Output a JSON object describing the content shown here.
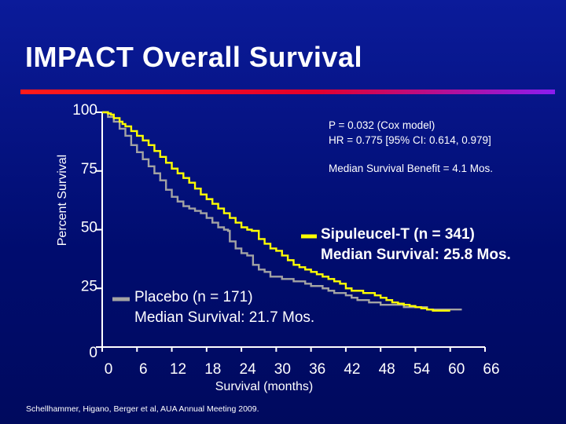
{
  "header": {
    "title": "IMPACT Overall Survival"
  },
  "annotations": {
    "p_value": "P = 0.032 (Cox model)",
    "hazard_ratio": "HR = 0.775 [95% CI: 0.614, 0.979]",
    "benefit": "Median Survival Benefit = 4.1 Mos.",
    "sipuleucel_label": "Sipuleucel-T (n = 341)",
    "sipuleucel_median": "Median Survival: 25.8 Mos.",
    "placebo_label": "Placebo (n = 171)",
    "placebo_median": "Median Survival: 21.7 Mos."
  },
  "footer": {
    "source": "Schellhammer, Higano, Berger et al, AUA Annual Meeting  2009."
  },
  "chart_data": {
    "type": "line",
    "title": "IMPACT Overall Survival",
    "xlabel": "Survival (months)",
    "ylabel": "Percent Survival",
    "xlim": [
      0,
      66
    ],
    "ylim": [
      0,
      100
    ],
    "x_ticks": [
      0,
      6,
      12,
      18,
      24,
      30,
      36,
      42,
      48,
      54,
      60,
      66
    ],
    "y_ticks": [
      0,
      25,
      50,
      75,
      100
    ],
    "x_tick_labels": [
      "0",
      "6",
      "12",
      "18",
      "24",
      "30",
      "36",
      "42",
      "48",
      "54",
      "60",
      "66"
    ],
    "y_tick_labels": [
      "0",
      "25",
      "50",
      "75",
      "100"
    ],
    "origin_label": "0",
    "colors": {
      "sipuleucel": "#ffff00",
      "placebo": "#a3a3a3",
      "axis": "#ffffff"
    },
    "series": [
      {
        "name": "Sipuleucel-T (n = 341)",
        "color": "#ffff00",
        "x": [
          0,
          1,
          1.5,
          2,
          3,
          3.5,
          4,
          5,
          6,
          7,
          8,
          9,
          10,
          11,
          12,
          13,
          14,
          15,
          16,
          17,
          18,
          19,
          20,
          21,
          22,
          23,
          24,
          25,
          25.8,
          27,
          28,
          29,
          30,
          31,
          32,
          33,
          34,
          35,
          36,
          37,
          38,
          39,
          40,
          41,
          42,
          43,
          44,
          45,
          46,
          47,
          48,
          49,
          50,
          51,
          52,
          53,
          54,
          55,
          56,
          57,
          58,
          59,
          60
        ],
        "values": [
          100,
          99.5,
          99,
          97.5,
          96,
          95,
          94,
          92,
          90,
          88,
          86,
          83.5,
          81,
          78.5,
          76,
          74,
          72,
          70,
          67.5,
          65,
          63,
          61,
          59,
          57,
          55,
          53,
          51,
          50,
          49.5,
          46,
          44,
          42,
          41,
          39,
          37,
          35,
          34,
          33,
          32,
          31,
          30,
          29,
          28,
          27,
          25,
          24,
          24,
          23,
          23,
          22,
          21,
          20,
          19,
          18.5,
          18,
          17.5,
          17,
          16.5,
          16,
          15.5,
          15.5,
          15.5,
          15.5
        ]
      },
      {
        "name": "Placebo (n = 171)",
        "color": "#a3a3a3",
        "x": [
          0,
          1,
          2,
          3,
          4,
          5,
          6,
          7,
          8,
          9,
          10,
          11,
          12,
          13,
          14,
          15,
          16,
          17,
          18,
          19,
          20,
          21,
          21.7,
          22,
          23,
          24,
          25,
          26,
          27,
          28,
          29,
          30,
          31,
          32,
          33,
          34,
          35,
          36,
          37,
          38,
          39,
          40,
          41,
          42,
          43,
          44,
          45,
          46,
          48,
          50,
          52,
          54,
          56,
          58,
          60,
          62
        ],
        "values": [
          100,
          98,
          96,
          93,
          90,
          86,
          83,
          80,
          77,
          74,
          71,
          67,
          64,
          62,
          60,
          59,
          58,
          57,
          55,
          53,
          51,
          50,
          49.5,
          45,
          42,
          40,
          39,
          35,
          33,
          32,
          30,
          30,
          29,
          29,
          28,
          28,
          27,
          26,
          26,
          25,
          24,
          23,
          23,
          22,
          21,
          20,
          20,
          19,
          18,
          18,
          17,
          17,
          16,
          16,
          16,
          16
        ]
      }
    ]
  }
}
